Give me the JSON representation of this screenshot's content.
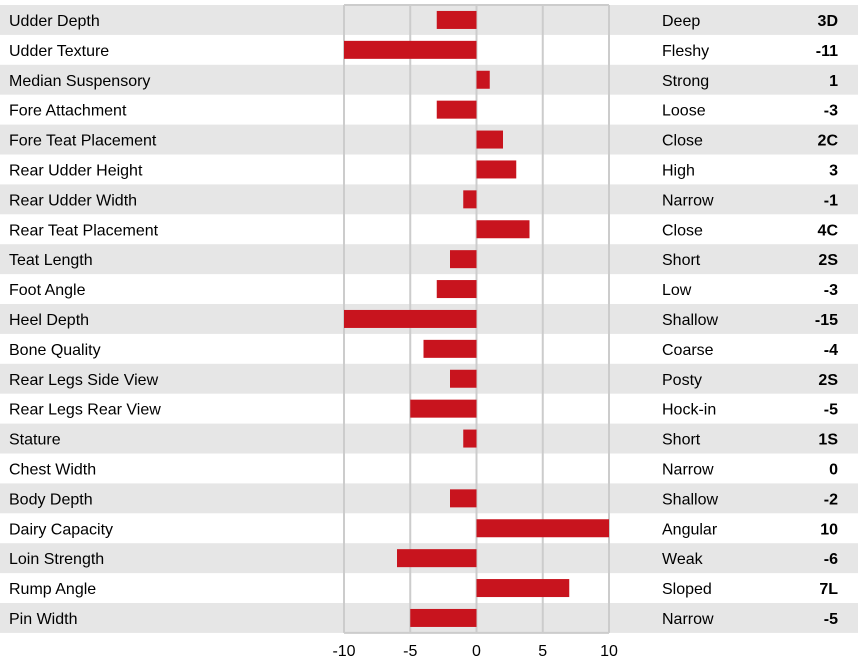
{
  "chart_data": {
    "type": "bar",
    "orientation": "horizontal",
    "xlim": [
      -10,
      10
    ],
    "xticks": [
      -10,
      -5,
      0,
      5,
      10
    ],
    "bar_color": "#c8141e",
    "stripe_color": "#e6e6e6",
    "grid": true,
    "rows": [
      {
        "trait": "Udder Depth",
        "value": -3,
        "description": "Deep",
        "label": "3D"
      },
      {
        "trait": "Udder Texture",
        "value": -10,
        "description": "Fleshy",
        "label": "-11"
      },
      {
        "trait": "Median Suspensory",
        "value": 1,
        "description": "Strong",
        "label": "1"
      },
      {
        "trait": "Fore Attachment",
        "value": -3,
        "description": "Loose",
        "label": "-3"
      },
      {
        "trait": "Fore Teat Placement",
        "value": 2,
        "description": "Close",
        "label": "2C"
      },
      {
        "trait": "Rear Udder Height",
        "value": 3,
        "description": "High",
        "label": "3"
      },
      {
        "trait": "Rear Udder Width",
        "value": -1,
        "description": "Narrow",
        "label": "-1"
      },
      {
        "trait": "Rear Teat Placement",
        "value": 4,
        "description": "Close",
        "label": "4C"
      },
      {
        "trait": "Teat Length",
        "value": -2,
        "description": "Short",
        "label": "2S"
      },
      {
        "trait": "Foot Angle",
        "value": -3,
        "description": "Low",
        "label": "-3"
      },
      {
        "trait": "Heel Depth",
        "value": -10,
        "description": "Shallow",
        "label": "-15"
      },
      {
        "trait": "Bone Quality",
        "value": -4,
        "description": "Coarse",
        "label": "-4"
      },
      {
        "trait": "Rear Legs Side View",
        "value": -2,
        "description": "Posty",
        "label": "2S"
      },
      {
        "trait": "Rear Legs Rear View",
        "value": -5,
        "description": "Hock-in",
        "label": "-5"
      },
      {
        "trait": "Stature",
        "value": -1,
        "description": "Short",
        "label": "1S"
      },
      {
        "trait": "Chest Width",
        "value": 0,
        "description": "Narrow",
        "label": "0"
      },
      {
        "trait": "Body Depth",
        "value": -2,
        "description": "Shallow",
        "label": "-2"
      },
      {
        "trait": "Dairy Capacity",
        "value": 10,
        "description": "Angular",
        "label": "10"
      },
      {
        "trait": "Loin Strength",
        "value": -6,
        "description": "Weak",
        "label": "-6"
      },
      {
        "trait": "Rump Angle",
        "value": 7,
        "description": "Sloped",
        "label": "7L"
      },
      {
        "trait": "Pin Width",
        "value": -5,
        "description": "Narrow",
        "label": "-5"
      }
    ]
  }
}
